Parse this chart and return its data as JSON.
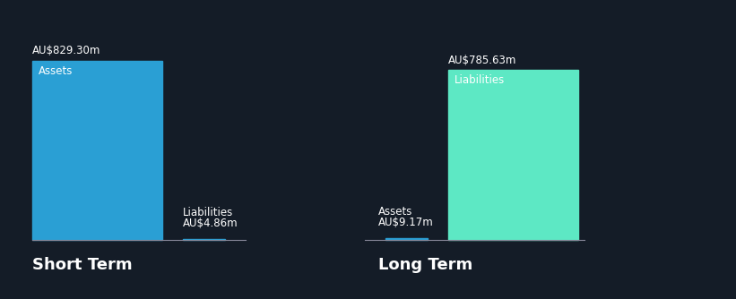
{
  "background_color": "#141c27",
  "text_color": "#ffffff",
  "short_term": {
    "assets_value": 829.3,
    "liabilities_value": 4.86,
    "assets_label": "Assets",
    "liabilities_label": "Liabilities",
    "assets_color": "#2a9fd4",
    "liabilities_color": "#2a9fd4",
    "assets_amount_str": "AU$829.30m",
    "liabilities_amount_str": "AU$4.86m",
    "section_label": "Short Term"
  },
  "long_term": {
    "assets_value": 9.17,
    "liabilities_value": 785.63,
    "assets_label": "Assets",
    "liabilities_label": "Liabilities",
    "assets_color": "#2a9fd4",
    "liabilities_color": "#5de8c4",
    "assets_amount_str": "AU$9.17m",
    "liabilities_amount_str": "AU$785.63m",
    "section_label": "Long Term"
  },
  "label_fontsize": 8.5,
  "amount_fontsize": 8.5,
  "section_fontsize": 13,
  "max_value": 900,
  "baseline_color": "#555566"
}
